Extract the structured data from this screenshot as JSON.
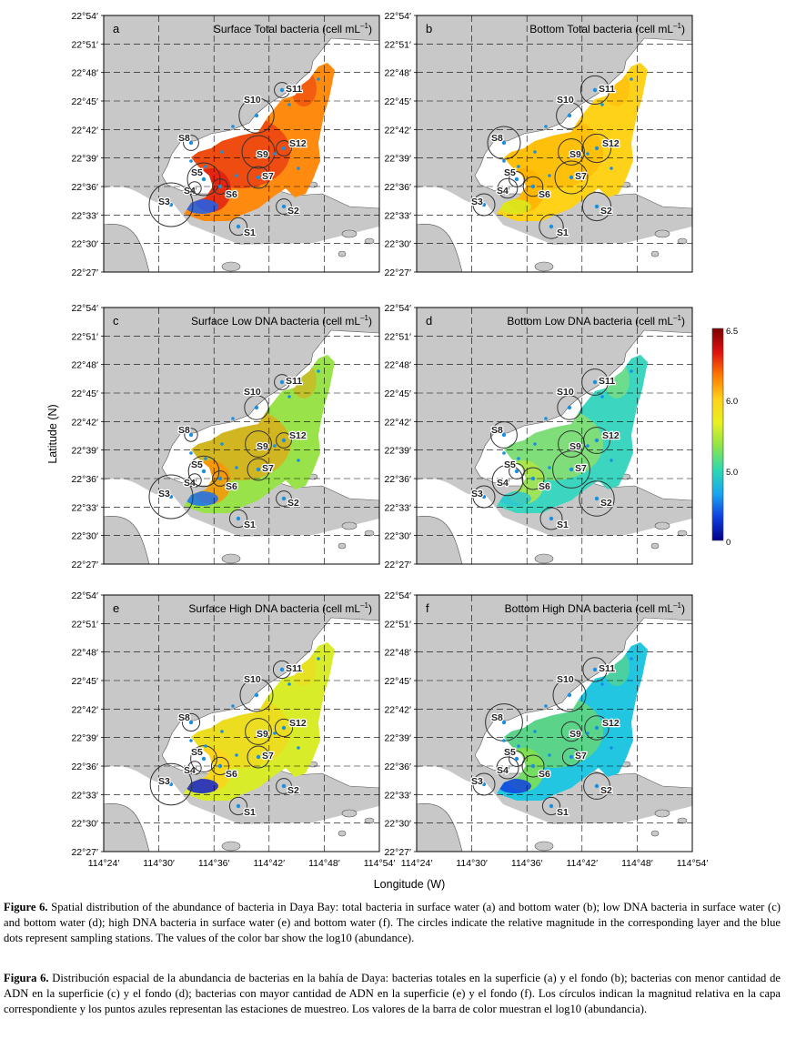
{
  "panels": [
    {
      "letter": "a",
      "layer": "Surface",
      "variable": "Total bacteria",
      "unit_prefix": "(cell mL",
      "unit_sup": "–1",
      "unit_suffix": ")",
      "field": "total_surface"
    },
    {
      "letter": "b",
      "layer": "Bottom",
      "variable": "Total bacteria",
      "unit_prefix": "(cell mL",
      "unit_sup": "–1",
      "unit_suffix": ")",
      "field": "total_bottom"
    },
    {
      "letter": "c",
      "layer": "Surface",
      "variable": "Low DNA bacteria",
      "unit_prefix": "(cell mL",
      "unit_sup": "–1",
      "unit_suffix": ")",
      "field": "low_surface"
    },
    {
      "letter": "d",
      "layer": "Bottom",
      "variable": "Low DNA bacteria",
      "unit_prefix": "(cell mL",
      "unit_sup": "–1",
      "unit_suffix": ")",
      "field": "low_bottom"
    },
    {
      "letter": "e",
      "layer": "Surface",
      "variable": "High DNA bacteria",
      "unit_prefix": "(cell mL",
      "unit_sup": "–1",
      "unit_suffix": ")",
      "field": "high_surface"
    },
    {
      "letter": "f",
      "layer": "Bottom",
      "variable": "High DNA bacteria",
      "unit_prefix": "(cell mL",
      "unit_sup": "–1",
      "unit_suffix": ")",
      "field": "high_bottom"
    }
  ],
  "lat_ticks": [
    "22°54′",
    "22°51′",
    "22°48′",
    "22°45′",
    "22°42′",
    "22°39′",
    "22°36′",
    "22°33′",
    "22°30′",
    "22°27′"
  ],
  "lon_ticks": [
    "114°24′",
    "114°30′",
    "114°36′",
    "114°42′",
    "114°48′",
    "114°54′"
  ],
  "axis": {
    "ylabel": "Latitude (N)",
    "xlabel": "Longitude (W)"
  },
  "colorbar": {
    "ticks": [
      "6.5",
      "6.0",
      "5.0",
      "0"
    ],
    "colors": [
      "#7a0000",
      "#e01010",
      "#ff7a00",
      "#ffd21a",
      "#e8f020",
      "#8de44a",
      "#2ed9b0",
      "#18a8f0",
      "#1040e0",
      "#00008a"
    ]
  },
  "stations": [
    "S1",
    "S2",
    "S3",
    "S4",
    "S5",
    "S6",
    "S7",
    "S8",
    "S9",
    "S10",
    "S11",
    "S12"
  ],
  "circle_scale": {
    "total_surface": {
      "S1": 0.4,
      "S2": 0.35,
      "S3": 1.0,
      "S4": 0.3,
      "S5": 0.75,
      "S6": 0.35,
      "S7": 0.5,
      "S8": 0.35,
      "S9": 0.75,
      "S10": 0.8,
      "S11": 0.35,
      "S12": 0.35
    },
    "total_bottom": {
      "S1": 0.55,
      "S2": 0.65,
      "S3": 0.5,
      "S4": 0.45,
      "S5": 0.35,
      "S6": 0.45,
      "S7": 0.75,
      "S8": 0.75,
      "S9": 0.6,
      "S10": 0.6,
      "S11": 0.65,
      "S12": 0.65
    },
    "low_surface": {
      "S1": 0.4,
      "S2": 0.35,
      "S3": 1.0,
      "S4": 0.3,
      "S5": 0.7,
      "S6": 0.35,
      "S7": 0.5,
      "S8": 0.3,
      "S9": 0.6,
      "S10": 0.55,
      "S11": 0.35,
      "S12": 0.35
    },
    "low_bottom": {
      "S1": 0.5,
      "S2": 0.8,
      "S3": 0.5,
      "S4": 0.7,
      "S5": 0.35,
      "S6": 0.5,
      "S7": 0.85,
      "S8": 0.6,
      "S9": 0.6,
      "S10": 0.55,
      "S11": 0.6,
      "S12": 0.6
    },
    "high_surface": {
      "S1": 0.4,
      "S2": 0.35,
      "S3": 0.95,
      "S4": 0.3,
      "S5": 0.6,
      "S6": 0.4,
      "S7": 0.5,
      "S8": 0.4,
      "S9": 0.6,
      "S10": 0.75,
      "S11": 0.4,
      "S12": 0.4
    },
    "high_bottom": {
      "S1": 0.4,
      "S2": 0.6,
      "S3": 0.5,
      "S4": 0.5,
      "S5": 0.35,
      "S6": 0.5,
      "S7": 0.4,
      "S8": 0.85,
      "S9": 0.45,
      "S10": 0.75,
      "S11": 0.55,
      "S12": 0.55
    }
  },
  "field_style": {
    "total_surface": {
      "base": "#ff8a10",
      "hot": "#e01a10",
      "cold": "#1a60f0"
    },
    "total_bottom": {
      "base": "#ffd21a",
      "hot": "#ffb000",
      "cold": "#d8ea20"
    },
    "low_surface": {
      "base": "#9ae24a",
      "hot": "#ff9000",
      "cold": "#1a70f0"
    },
    "low_bottom": {
      "base": "#3cd6c0",
      "hot": "#b6e640",
      "cold": "#2ec8d0"
    },
    "high_surface": {
      "base": "#d8ec2a",
      "hot": "#ffd21a",
      "cold": "#1020d0"
    },
    "high_bottom": {
      "base": "#22c6e0",
      "hot": "#8ae044",
      "cold": "#1040e0"
    }
  },
  "caption_en": {
    "label": "Figure 6.",
    "text": " Spatial distribution of the abundance of bacteria in Daya Bay: total bacteria in surface water (a) and bottom water (b); low DNA bacteria in surface water (c) and bottom water (d); high DNA bacteria in surface water (e) and bottom water (f). The circles indicate the relative magnitude in the corresponding layer and the blue dots represent sampling stations. The values of the color bar show the log10 (abundance)."
  },
  "caption_es": {
    "label": "Figura 6.",
    "text": " Distribución espacial de la abundancia de bacterias en la bahía de Daya: bacterias totales en la superficie (a) y el fondo (b); bacterias con menor cantidad de ADN en la superficie (c) y el fondo (d); bacterias con mayor cantidad de ADN en la superficie (e) y el fondo (f). Los círculos indican la magnitud relativa en la capa correspondiente y los puntos azules representan las estaciones de muestreo. Los valores de la barra de color muestran el log10 (abundancia)."
  }
}
